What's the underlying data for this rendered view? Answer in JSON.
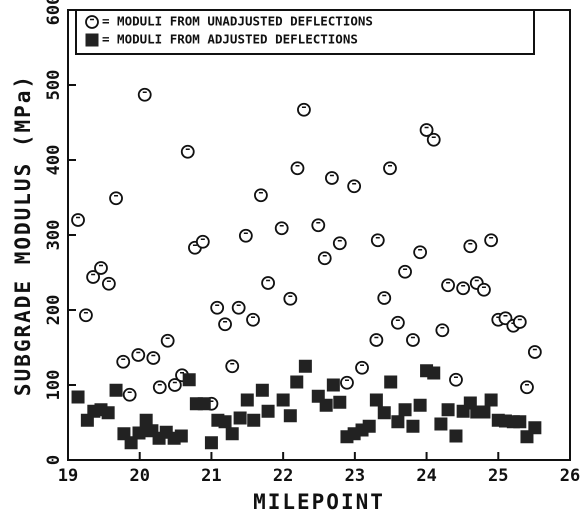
{
  "chart_data": {
    "type": "scatter",
    "xlabel": "MILEPOINT",
    "ylabel": "SUBGRADE MODULUS (MPa)",
    "xlim": [
      19,
      26
    ],
    "xticks": [
      19,
      20,
      21,
      22,
      23,
      24,
      25,
      26
    ],
    "ylim": [
      0,
      600
    ],
    "yticks": [
      0,
      100,
      200,
      300,
      400,
      500,
      600
    ],
    "legend": "top",
    "series": [
      {
        "name": "= MODULI FROM UNADJUSTED DEFLECTIONS",
        "color": "#111111",
        "marker": "circle",
        "x": [
          19.14,
          19.25,
          19.35,
          19.46,
          19.57,
          19.67,
          19.77,
          19.86,
          19.98,
          20.07,
          20.19,
          20.28,
          20.39,
          20.49,
          20.59,
          20.67,
          20.77,
          20.88,
          21.0,
          21.08,
          21.19,
          21.29,
          21.38,
          21.48,
          21.58,
          21.69,
          21.79,
          21.98,
          22.1,
          22.2,
          22.29,
          22.49,
          22.58,
          22.68,
          22.79,
          22.89,
          22.99,
          23.1,
          23.3,
          23.32,
          23.41,
          23.49,
          23.6,
          23.7,
          23.81,
          23.91,
          24.0,
          24.1,
          24.22,
          24.3,
          24.41,
          24.51,
          24.61,
          24.7,
          24.8,
          24.9,
          25.0,
          25.1,
          25.21,
          25.3,
          25.4,
          25.51
        ],
        "values": [
          320,
          193,
          244,
          256,
          235,
          349,
          131,
          87,
          140,
          487,
          136,
          97,
          159,
          100,
          113,
          411,
          283,
          291,
          75,
          203,
          181,
          125,
          203,
          299,
          187,
          353,
          236,
          309,
          215,
          389,
          467,
          313,
          269,
          376,
          289,
          103,
          365,
          123,
          160,
          293,
          216,
          389,
          183,
          251,
          160,
          277,
          440,
          427,
          173,
          233,
          107,
          229,
          285,
          236,
          227,
          293,
          187,
          189,
          179,
          184,
          97,
          144
        ]
      },
      {
        "name": "= MODULI FROM ADJUSTED DEFLECTIONS",
        "color": "#222222",
        "marker": "square",
        "x": [
          19.14,
          19.27,
          19.36,
          19.46,
          19.56,
          19.67,
          19.78,
          19.88,
          19.99,
          20.09,
          20.17,
          20.27,
          20.37,
          20.48,
          20.58,
          20.69,
          20.79,
          20.9,
          21.0,
          21.09,
          21.19,
          21.29,
          21.4,
          21.5,
          21.59,
          21.71,
          21.79,
          22.0,
          22.1,
          22.19,
          22.31,
          22.49,
          22.6,
          22.7,
          22.79,
          22.89,
          22.99,
          23.1,
          23.2,
          23.3,
          23.41,
          23.5,
          23.6,
          23.7,
          23.81,
          23.91,
          24.0,
          24.1,
          24.2,
          24.3,
          24.41,
          24.51,
          24.61,
          24.7,
          24.8,
          24.9,
          25.0,
          25.1,
          25.21,
          25.3,
          25.4,
          25.51
        ],
        "values": [
          84,
          53,
          65,
          67,
          63,
          93,
          35,
          23,
          36,
          53,
          39,
          29,
          37,
          29,
          32,
          107,
          75,
          75,
          23,
          53,
          51,
          35,
          56,
          80,
          53,
          93,
          65,
          80,
          59,
          104,
          125,
          85,
          73,
          100,
          77,
          31,
          35,
          40,
          45,
          80,
          63,
          104,
          51,
          67,
          45,
          73,
          119,
          116,
          48,
          67,
          32,
          65,
          76,
          64,
          64,
          80,
          53,
          52,
          51,
          51,
          31,
          43
        ]
      }
    ]
  }
}
